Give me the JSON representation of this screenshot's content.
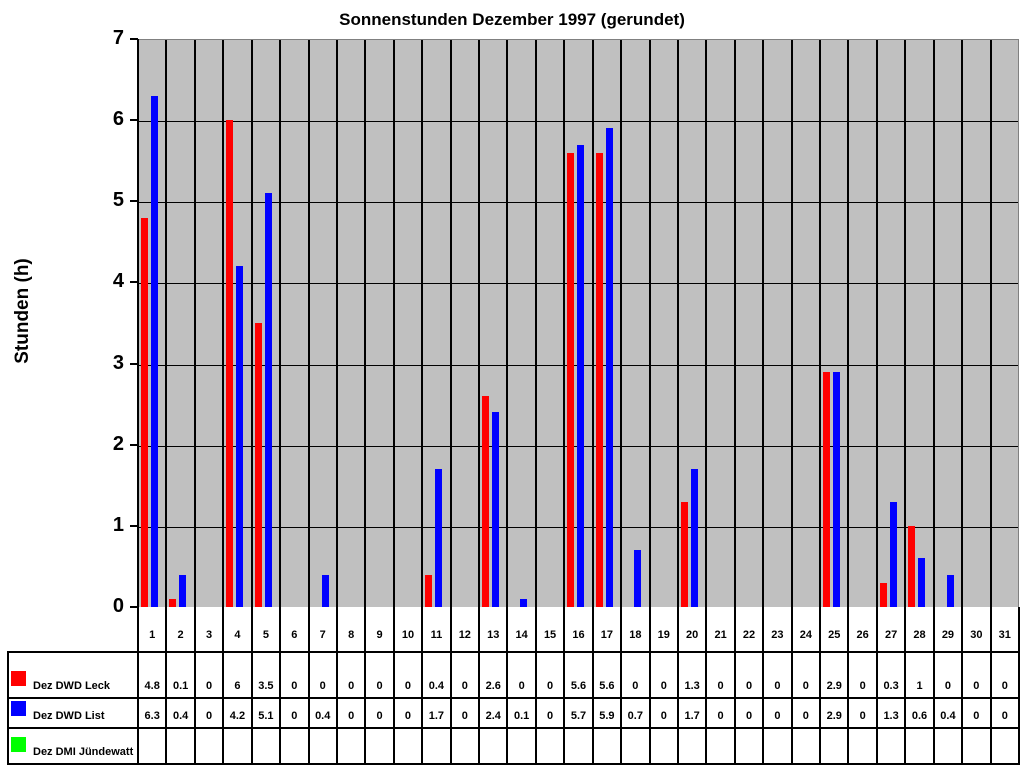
{
  "chart_data": {
    "type": "bar",
    "title": "Sonnenstunden Dezember 1997 (gerundet)",
    "xlabel": "",
    "ylabel": "Stunden (h)",
    "ylim": [
      0,
      7
    ],
    "yticks": [
      0,
      1,
      2,
      3,
      4,
      5,
      6,
      7
    ],
    "grid": true,
    "legend_position": "data-table-left",
    "categories": [
      "1",
      "2",
      "3",
      "4",
      "5",
      "6",
      "7",
      "8",
      "9",
      "10",
      "11",
      "12",
      "13",
      "14",
      "15",
      "16",
      "17",
      "18",
      "19",
      "20",
      "21",
      "22",
      "23",
      "24",
      "25",
      "26",
      "27",
      "28",
      "29",
      "30",
      "31"
    ],
    "series": [
      {
        "name": "Dez DWD Leck",
        "color": "#ff0000",
        "values": [
          4.8,
          0.1,
          0,
          6,
          3.5,
          0,
          0,
          0,
          0,
          0,
          0.4,
          0,
          2.6,
          0,
          0,
          5.6,
          5.6,
          0,
          0,
          1.3,
          0,
          0,
          0,
          0,
          2.9,
          0,
          0.3,
          1,
          0,
          0,
          0
        ]
      },
      {
        "name": "Dez DWD List",
        "color": "#0000ff",
        "values": [
          6.3,
          0.4,
          0,
          4.2,
          5.1,
          0,
          0.4,
          0,
          0,
          0,
          1.7,
          0,
          2.4,
          0.1,
          0,
          5.7,
          5.9,
          0.7,
          0,
          1.7,
          0,
          0,
          0,
          0,
          2.9,
          0,
          1.3,
          0.6,
          0.4,
          0,
          0
        ]
      },
      {
        "name": "Dez DMI Jündewatt",
        "color": "#00ff00",
        "values": [
          null,
          null,
          null,
          null,
          null,
          null,
          null,
          null,
          null,
          null,
          null,
          null,
          null,
          null,
          null,
          null,
          null,
          null,
          null,
          null,
          null,
          null,
          null,
          null,
          null,
          null,
          null,
          null,
          null,
          null,
          null
        ]
      }
    ]
  },
  "table": {
    "rows": [
      {
        "label": "Dez DWD Leck",
        "color": "#ff0000",
        "cells": [
          "4.8",
          "0.1",
          "0",
          "6",
          "3.5",
          "0",
          "0",
          "0",
          "0",
          "0",
          "0.4",
          "0",
          "2.6",
          "0",
          "0",
          "5.6",
          "5.6",
          "0",
          "0",
          "1.3",
          "0",
          "0",
          "0",
          "0",
          "2.9",
          "0",
          "0.3",
          "1",
          "0",
          "0",
          "0"
        ]
      },
      {
        "label": "Dez DWD List",
        "color": "#0000ff",
        "cells": [
          "6.3",
          "0.4",
          "0",
          "4.2",
          "5.1",
          "0",
          "0.4",
          "0",
          "0",
          "0",
          "1.7",
          "0",
          "2.4",
          "0.1",
          "0",
          "5.7",
          "5.9",
          "0.7",
          "0",
          "1.7",
          "0",
          "0",
          "0",
          "0",
          "2.9",
          "0",
          "1.3",
          "0.6",
          "0.4",
          "0",
          "0"
        ]
      },
      {
        "label": "Dez DMI Jündewatt",
        "color": "#00ff00",
        "cells": [
          "",
          "",
          "",
          "",
          "",
          "",
          "",
          "",
          "",
          "",
          "",
          "",
          "",
          "",
          "",
          "",
          "",
          "",
          "",
          "",
          "",
          "",
          "",
          "",
          "",
          "",
          "",
          "",
          "",
          "",
          ""
        ]
      }
    ]
  },
  "colors": {
    "plot_bg": "#c0c0c0",
    "grid": "#000000"
  }
}
